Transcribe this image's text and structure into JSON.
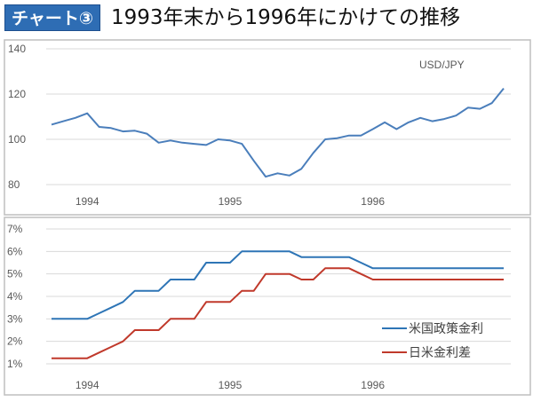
{
  "header": {
    "badge": "チャート③",
    "title": "1993年末から1996年にかけての推移"
  },
  "chart_data": [
    {
      "type": "line",
      "title": "USD/JPY",
      "ylim": [
        80,
        140
      ],
      "yticks": [
        "140",
        "120",
        "100",
        "80"
      ],
      "ytick_values": [
        140,
        120,
        100,
        80
      ],
      "xtick_labels": [
        "1994",
        "1995",
        "1996"
      ],
      "xtick_index": [
        3,
        15,
        27
      ],
      "grid": true,
      "series": [
        {
          "name": "USD/JPY",
          "color": "#4a7ebb",
          "values": [
            106.5,
            108,
            109.5,
            111.5,
            105.5,
            105,
            103.5,
            103.8,
            102.5,
            98.5,
            99.5,
            98.5,
            98,
            97.5,
            100,
            99.5,
            98,
            90.5,
            83.5,
            85,
            84,
            87,
            94,
            100,
            100.5,
            101.7,
            101.7,
            104.5,
            107.5,
            104.5,
            107.5,
            109.5,
            108,
            109,
            110.5,
            114,
            113.5,
            116,
            122.5
          ]
        }
      ]
    },
    {
      "type": "line",
      "ylim": [
        1,
        7
      ],
      "yticks": [
        "7%",
        "6%",
        "5%",
        "4%",
        "3%",
        "2%",
        "1%"
      ],
      "ytick_values": [
        7,
        6,
        5,
        4,
        3,
        2,
        1
      ],
      "xtick_labels": [
        "1994",
        "1995",
        "1996"
      ],
      "xtick_index": [
        3,
        15,
        27
      ],
      "grid": true,
      "legend": "bottom-right",
      "series": [
        {
          "name": "米国政策金利",
          "color": "#2e75b6",
          "values": [
            3,
            3,
            3,
            3,
            3.25,
            3.5,
            3.75,
            4.25,
            4.25,
            4.25,
            4.75,
            4.75,
            4.75,
            5.5,
            5.5,
            5.5,
            6,
            6,
            6,
            6,
            6,
            5.75,
            5.75,
            5.75,
            5.75,
            5.75,
            5.5,
            5.25,
            5.25,
            5.25,
            5.25,
            5.25,
            5.25,
            5.25,
            5.25,
            5.25,
            5.25,
            5.25,
            5.25
          ]
        },
        {
          "name": "日米金利差",
          "color": "#c0392b",
          "values": [
            1.25,
            1.25,
            1.25,
            1.25,
            1.5,
            1.75,
            2,
            2.5,
            2.5,
            2.5,
            3,
            3,
            3,
            3.75,
            3.75,
            3.75,
            4.25,
            4.25,
            5,
            5,
            5,
            4.75,
            4.75,
            5.25,
            5.25,
            5.25,
            5,
            4.75,
            4.75,
            4.75,
            4.75,
            4.75,
            4.75,
            4.75,
            4.75,
            4.75,
            4.75,
            4.75,
            4.75
          ]
        }
      ]
    }
  ]
}
